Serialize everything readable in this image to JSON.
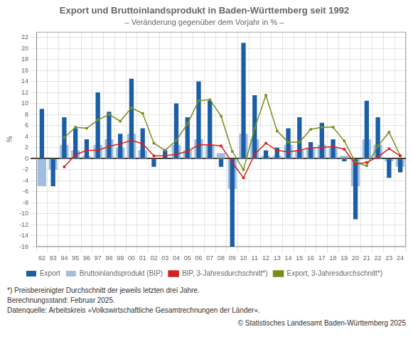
{
  "chart_data": {
    "type": "bar",
    "title": "Export und Bruttoinlandsprodukt in Baden-Württemberg seit 1992",
    "subtitle": "– Veränderung gegenüber dem Vorjahr in % –",
    "ylabel": "%",
    "categories": [
      "92",
      "93",
      "94",
      "95",
      "96",
      "97",
      "98",
      "99",
      "00",
      "01",
      "02",
      "03",
      "04",
      "05",
      "06",
      "07",
      "08",
      "09",
      "10",
      "11",
      "12",
      "13",
      "14",
      "15",
      "16",
      "17",
      "18",
      "19",
      "20",
      "21",
      "22",
      "23",
      "24"
    ],
    "series": [
      {
        "name": "Export",
        "type": "bar",
        "color": "#1a5ea8",
        "values": [
          9.0,
          -5.0,
          7.5,
          5.5,
          3.5,
          12.0,
          8.5,
          4.5,
          14.5,
          5.5,
          -1.5,
          1.5,
          10.0,
          7.5,
          14.0,
          10.5,
          -1.5,
          -16.0,
          21.0,
          11.5,
          1.5,
          2.0,
          5.5,
          7.5,
          3.0,
          6.5,
          3.5,
          -0.5,
          -11.0,
          10.5,
          7.5,
          -3.5,
          -2.5
        ]
      },
      {
        "name": "Bruttoinlandsprodukt (BIP)",
        "type": "bar",
        "color": "#a0bede",
        "values": [
          -5.0,
          -2.0,
          2.5,
          1.5,
          0.5,
          2.5,
          3.5,
          2.0,
          4.5,
          1.5,
          0.0,
          0.0,
          2.5,
          1.5,
          3.5,
          2.5,
          1.0,
          -5.5,
          4.5,
          3.5,
          0.5,
          0.5,
          2.5,
          1.5,
          2.0,
          2.5,
          2.0,
          0.5,
          -5.0,
          3.5,
          2.5,
          -0.5,
          -1.5
        ]
      },
      {
        "name": "BIP, 3-Jahresdurchschnitt*)",
        "type": "line",
        "marker": "square",
        "color": "#d42020",
        "values": [
          null,
          null,
          -1.5,
          0.7,
          1.5,
          1.5,
          2.2,
          2.7,
          3.3,
          2.7,
          0.5,
          0.5,
          0.8,
          1.3,
          2.5,
          2.5,
          2.3,
          -0.7,
          -3.5,
          0.8,
          2.8,
          1.5,
          1.2,
          1.5,
          2.0,
          2.0,
          2.2,
          1.7,
          -1.0,
          -0.7,
          0.3,
          1.8,
          0.5
        ]
      },
      {
        "name": "Export, 3-Jahresdurchschnitt*)",
        "type": "line",
        "marker": "square",
        "color": "#7a8c1a",
        "values": [
          null,
          null,
          3.8,
          5.7,
          5.5,
          7.0,
          8.0,
          6.8,
          9.2,
          8.2,
          2.8,
          1.5,
          3.3,
          6.3,
          10.5,
          10.7,
          7.7,
          1.3,
          -2.0,
          5.5,
          11.5,
          5.0,
          3.0,
          3.0,
          5.3,
          5.7,
          5.7,
          3.2,
          -0.7,
          -1.3,
          2.3,
          4.8,
          0.5
        ]
      }
    ],
    "ylim": [
      -16,
      23
    ],
    "yticks": [
      -16,
      -14,
      -12,
      -10,
      -8,
      -6,
      -4,
      -2,
      0,
      2,
      4,
      6,
      8,
      10,
      12,
      14,
      16,
      18,
      20,
      22
    ],
    "grid": true,
    "legend": "bottom",
    "footnotes": [
      "*) Preisbereinigter Durchschnitt der jeweils letzten drei Jahre.",
      "Berechnungsstand: Februar 2025.",
      "Datenquelle: Arbeitskreis »Volkswirtschaftliche Gesamtrechnungen der Länder«.",
      "© Statistisches Landesamt Baden-Württemberg 2025"
    ]
  }
}
